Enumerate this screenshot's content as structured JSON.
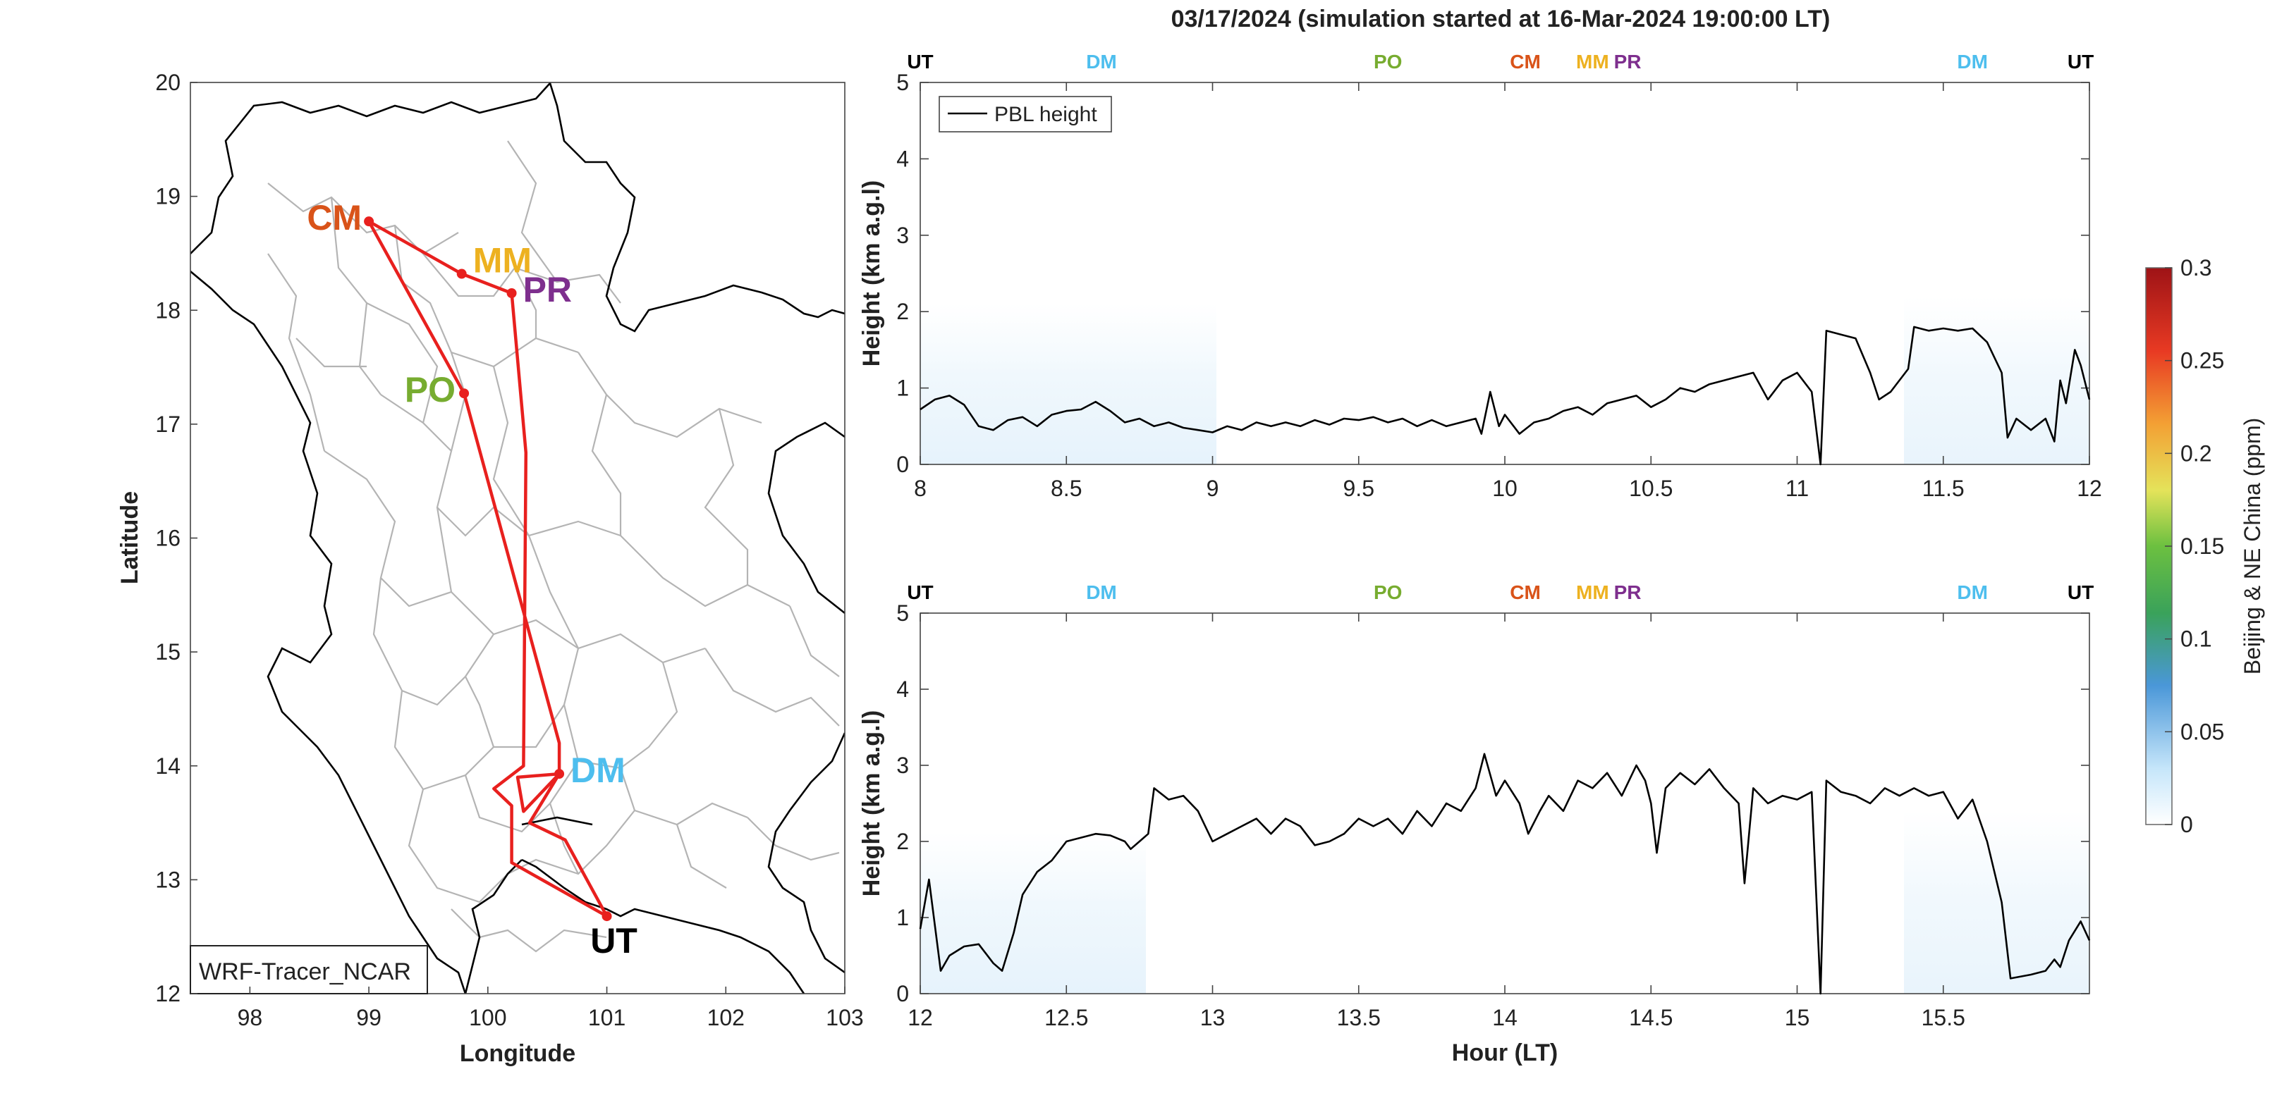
{
  "title": "03/17/2024 (simulation started at 16-Mar-2024 19:00:00 LT)",
  "colors": {
    "route": "#e8201e",
    "CM": "#d95319",
    "MM": "#edb120",
    "PR": "#7e2f8e",
    "PO": "#77ac30",
    "DM": "#4dbeee",
    "UT": "#000000",
    "border": "#000000",
    "province": "#b4b4b4",
    "pbl": "#000000",
    "tracer_fill": "#e6f2fb"
  },
  "chart_data": [
    {
      "type": "map",
      "xlabel": "Longitude",
      "ylabel": "Latitude",
      "xlim": [
        97.5,
        103
      ],
      "ylim": [
        12,
        20
      ],
      "xticks": [
        98,
        99,
        100,
        101,
        102,
        103
      ],
      "yticks": [
        12,
        13,
        14,
        15,
        16,
        17,
        18,
        19,
        20
      ],
      "label_box": "WRF-Tracer_NCAR",
      "sites": [
        {
          "name": "CM",
          "lon": 99.0,
          "lat": 18.78
        },
        {
          "name": "MM",
          "lon": 99.78,
          "lat": 18.32
        },
        {
          "name": "PR",
          "lon": 100.2,
          "lat": 18.15
        },
        {
          "name": "PO",
          "lon": 99.8,
          "lat": 17.27
        },
        {
          "name": "DM",
          "lon": 100.6,
          "lat": 13.93
        },
        {
          "name": "UT",
          "lon": 101.0,
          "lat": 12.68
        }
      ],
      "route": [
        [
          101.0,
          12.68
        ],
        [
          100.2,
          13.15
        ],
        [
          100.2,
          13.65
        ],
        [
          100.05,
          13.8
        ],
        [
          100.3,
          14.0
        ],
        [
          100.32,
          16.75
        ],
        [
          100.2,
          18.15
        ],
        [
          99.78,
          18.32
        ],
        [
          99.0,
          18.78
        ],
        [
          99.8,
          17.27
        ],
        [
          100.6,
          14.2
        ],
        [
          100.6,
          13.93
        ],
        [
          100.3,
          13.6
        ],
        [
          100.25,
          13.9
        ],
        [
          100.6,
          13.93
        ],
        [
          100.35,
          13.5
        ],
        [
          100.65,
          13.35
        ],
        [
          101.0,
          12.68
        ]
      ]
    },
    {
      "type": "line",
      "ylabel": "Height (km a.g.l)",
      "xlim": [
        8,
        12
      ],
      "ylim": [
        0,
        5
      ],
      "xticks": [
        8,
        8.5,
        9,
        9.5,
        10,
        10.5,
        11,
        11.5,
        12
      ],
      "yticks": [
        0,
        1,
        2,
        3,
        4,
        5
      ],
      "legend": "PBL height",
      "site_passes": [
        {
          "name": "UT",
          "x": 8.0
        },
        {
          "name": "DM",
          "x": 8.62
        },
        {
          "name": "PO",
          "x": 9.6
        },
        {
          "name": "CM",
          "x": 10.07
        },
        {
          "name": "MM",
          "x": 10.3
        },
        {
          "name": "PR",
          "x": 10.42
        },
        {
          "name": "DM",
          "x": 11.6
        },
        {
          "name": "UT",
          "x": 11.97
        }
      ],
      "series": [
        {
          "values": [
            [
              8.0,
              0.72
            ],
            [
              8.05,
              0.85
            ],
            [
              8.1,
              0.9
            ],
            [
              8.15,
              0.78
            ],
            [
              8.2,
              0.5
            ],
            [
              8.25,
              0.45
            ],
            [
              8.3,
              0.58
            ],
            [
              8.35,
              0.62
            ],
            [
              8.4,
              0.5
            ],
            [
              8.45,
              0.65
            ],
            [
              8.5,
              0.7
            ],
            [
              8.55,
              0.72
            ],
            [
              8.6,
              0.82
            ],
            [
              8.65,
              0.7
            ],
            [
              8.7,
              0.55
            ],
            [
              8.75,
              0.6
            ],
            [
              8.8,
              0.5
            ],
            [
              8.85,
              0.55
            ],
            [
              8.9,
              0.48
            ],
            [
              8.95,
              0.45
            ],
            [
              9.0,
              0.42
            ],
            [
              9.05,
              0.5
            ],
            [
              9.1,
              0.45
            ],
            [
              9.15,
              0.55
            ],
            [
              9.2,
              0.5
            ],
            [
              9.25,
              0.55
            ],
            [
              9.3,
              0.5
            ],
            [
              9.35,
              0.58
            ],
            [
              9.4,
              0.52
            ],
            [
              9.45,
              0.6
            ],
            [
              9.5,
              0.58
            ],
            [
              9.55,
              0.62
            ],
            [
              9.6,
              0.55
            ],
            [
              9.65,
              0.6
            ],
            [
              9.7,
              0.5
            ],
            [
              9.75,
              0.58
            ],
            [
              9.8,
              0.5
            ],
            [
              9.85,
              0.55
            ],
            [
              9.9,
              0.6
            ],
            [
              9.92,
              0.4
            ],
            [
              9.95,
              0.95
            ],
            [
              9.98,
              0.5
            ],
            [
              10.0,
              0.65
            ],
            [
              10.05,
              0.4
            ],
            [
              10.1,
              0.55
            ],
            [
              10.15,
              0.6
            ],
            [
              10.2,
              0.7
            ],
            [
              10.25,
              0.75
            ],
            [
              10.3,
              0.65
            ],
            [
              10.35,
              0.8
            ],
            [
              10.4,
              0.85
            ],
            [
              10.45,
              0.9
            ],
            [
              10.5,
              0.75
            ],
            [
              10.55,
              0.85
            ],
            [
              10.6,
              1.0
            ],
            [
              10.65,
              0.95
            ],
            [
              10.7,
              1.05
            ],
            [
              10.75,
              1.1
            ],
            [
              10.8,
              1.15
            ],
            [
              10.85,
              1.2
            ],
            [
              10.9,
              0.85
            ],
            [
              10.95,
              1.1
            ],
            [
              11.0,
              1.2
            ],
            [
              11.05,
              0.95
            ],
            [
              11.08,
              0.0
            ],
            [
              11.1,
              1.75
            ],
            [
              11.15,
              1.7
            ],
            [
              11.2,
              1.65
            ],
            [
              11.25,
              1.2
            ],
            [
              11.28,
              0.85
            ],
            [
              11.32,
              0.95
            ],
            [
              11.38,
              1.25
            ],
            [
              11.4,
              1.8
            ],
            [
              11.45,
              1.75
            ],
            [
              11.5,
              1.78
            ],
            [
              11.55,
              1.75
            ],
            [
              11.6,
              1.78
            ],
            [
              11.65,
              1.6
            ],
            [
              11.7,
              1.2
            ],
            [
              11.72,
              0.35
            ],
            [
              11.75,
              0.6
            ],
            [
              11.8,
              0.45
            ],
            [
              11.85,
              0.6
            ],
            [
              11.88,
              0.3
            ],
            [
              11.9,
              1.1
            ],
            [
              11.92,
              0.8
            ],
            [
              11.95,
              1.5
            ],
            [
              11.97,
              1.3
            ],
            [
              12.0,
              0.85
            ]
          ]
        }
      ]
    },
    {
      "type": "line",
      "xlabel": "Hour (LT)",
      "ylabel": "Height (km a.g.l)",
      "xlim": [
        12,
        16
      ],
      "ylim": [
        0,
        5
      ],
      "xticks": [
        12,
        12.5,
        13,
        13.5,
        14,
        14.5,
        15,
        15.5
      ],
      "yticks": [
        0,
        1,
        2,
        3,
        4,
        5
      ],
      "site_passes": [
        {
          "name": "UT",
          "x": 12.0
        },
        {
          "name": "DM",
          "x": 12.62
        },
        {
          "name": "PO",
          "x": 13.6
        },
        {
          "name": "CM",
          "x": 14.07
        },
        {
          "name": "MM",
          "x": 14.3
        },
        {
          "name": "PR",
          "x": 14.42
        },
        {
          "name": "DM",
          "x": 15.6
        },
        {
          "name": "UT",
          "x": 15.97
        }
      ],
      "series": [
        {
          "values": [
            [
              12.0,
              0.85
            ],
            [
              12.03,
              1.5
            ],
            [
              12.07,
              0.3
            ],
            [
              12.1,
              0.5
            ],
            [
              12.15,
              0.62
            ],
            [
              12.2,
              0.65
            ],
            [
              12.25,
              0.4
            ],
            [
              12.28,
              0.3
            ],
            [
              12.32,
              0.8
            ],
            [
              12.35,
              1.3
            ],
            [
              12.4,
              1.6
            ],
            [
              12.45,
              1.75
            ],
            [
              12.48,
              1.9
            ],
            [
              12.5,
              2.0
            ],
            [
              12.55,
              2.05
            ],
            [
              12.6,
              2.1
            ],
            [
              12.65,
              2.08
            ],
            [
              12.7,
              2.0
            ],
            [
              12.72,
              1.9
            ],
            [
              12.75,
              2.0
            ],
            [
              12.78,
              2.1
            ],
            [
              12.8,
              2.7
            ],
            [
              12.85,
              2.55
            ],
            [
              12.9,
              2.6
            ],
            [
              12.95,
              2.4
            ],
            [
              13.0,
              2.0
            ],
            [
              13.05,
              2.1
            ],
            [
              13.1,
              2.2
            ],
            [
              13.15,
              2.3
            ],
            [
              13.2,
              2.1
            ],
            [
              13.25,
              2.3
            ],
            [
              13.3,
              2.2
            ],
            [
              13.35,
              1.95
            ],
            [
              13.4,
              2.0
            ],
            [
              13.45,
              2.1
            ],
            [
              13.5,
              2.3
            ],
            [
              13.55,
              2.2
            ],
            [
              13.6,
              2.3
            ],
            [
              13.65,
              2.1
            ],
            [
              13.7,
              2.4
            ],
            [
              13.75,
              2.2
            ],
            [
              13.8,
              2.5
            ],
            [
              13.85,
              2.4
            ],
            [
              13.9,
              2.7
            ],
            [
              13.93,
              3.15
            ],
            [
              13.97,
              2.6
            ],
            [
              14.0,
              2.8
            ],
            [
              14.05,
              2.5
            ],
            [
              14.08,
              2.1
            ],
            [
              14.12,
              2.4
            ],
            [
              14.15,
              2.6
            ],
            [
              14.2,
              2.4
            ],
            [
              14.25,
              2.8
            ],
            [
              14.3,
              2.7
            ],
            [
              14.35,
              2.9
            ],
            [
              14.4,
              2.6
            ],
            [
              14.45,
              3.0
            ],
            [
              14.48,
              2.8
            ],
            [
              14.5,
              2.5
            ],
            [
              14.52,
              1.85
            ],
            [
              14.55,
              2.7
            ],
            [
              14.6,
              2.9
            ],
            [
              14.65,
              2.75
            ],
            [
              14.7,
              2.95
            ],
            [
              14.75,
              2.7
            ],
            [
              14.8,
              2.5
            ],
            [
              14.82,
              1.45
            ],
            [
              14.85,
              2.7
            ],
            [
              14.9,
              2.5
            ],
            [
              14.95,
              2.6
            ],
            [
              15.0,
              2.55
            ],
            [
              15.05,
              2.65
            ],
            [
              15.08,
              0.0
            ],
            [
              15.1,
              2.8
            ],
            [
              15.15,
              2.65
            ],
            [
              15.2,
              2.6
            ],
            [
              15.25,
              2.5
            ],
            [
              15.3,
              2.7
            ],
            [
              15.35,
              2.6
            ],
            [
              15.4,
              2.7
            ],
            [
              15.45,
              2.6
            ],
            [
              15.5,
              2.65
            ],
            [
              15.55,
              2.3
            ],
            [
              15.6,
              2.55
            ],
            [
              15.65,
              2.0
            ],
            [
              15.7,
              1.2
            ],
            [
              15.73,
              0.2
            ],
            [
              15.8,
              0.25
            ],
            [
              15.85,
              0.3
            ],
            [
              15.88,
              0.45
            ],
            [
              15.9,
              0.35
            ],
            [
              15.93,
              0.7
            ],
            [
              15.97,
              0.95
            ],
            [
              16.0,
              0.7
            ]
          ]
        }
      ]
    },
    {
      "type": "colorbar",
      "label": "Beijing & NE China (ppm)",
      "ticks": [
        "0",
        "0.05",
        "0.1",
        "0.15",
        "0.2",
        "0.25",
        "0.3"
      ],
      "range": [
        0,
        0.3
      ]
    }
  ]
}
